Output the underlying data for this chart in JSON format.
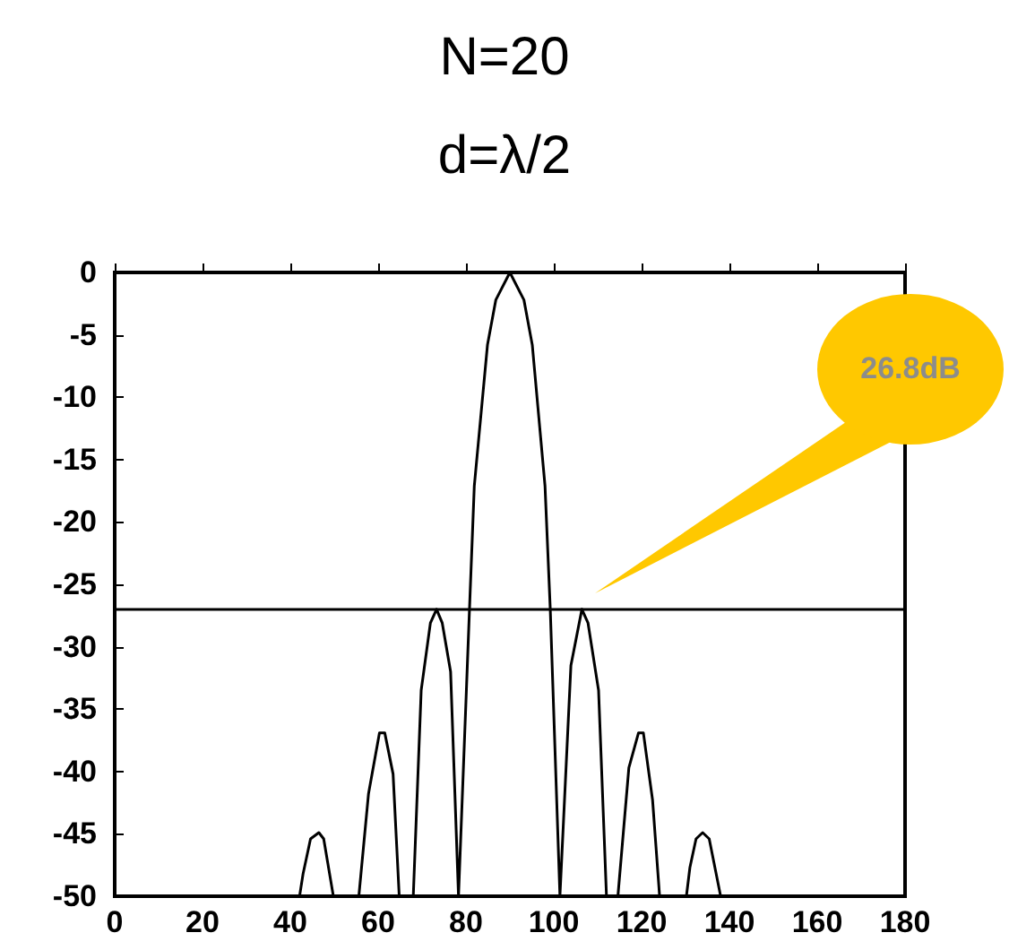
{
  "chart_data": {
    "type": "line",
    "title": "N=20",
    "subtitle": "d=λ/2",
    "x": [
      42.1,
      42.9,
      44.6,
      46.5,
      47.6,
      49.8,
      52.7,
      55.6,
      57.8,
      60.3,
      61.5,
      63.4,
      64.8,
      68.0,
      69.8,
      71.9,
      73.3,
      74.6,
      76.5,
      78.3,
      80.8,
      81.9,
      84.9,
      86.8,
      90,
      93.2,
      95.1,
      98,
      99.2,
      101.4,
      103.9,
      106.4,
      107.8,
      110.2,
      112,
      114.6,
      117.1,
      119.3,
      120.4,
      122.5,
      124.1,
      127.2,
      130.2,
      131,
      132.4,
      133.9,
      135.4,
      138
    ],
    "series": [
      {
        "color": "#000000",
        "values": [
          -50,
          -48.2,
          -45.4,
          -44.9,
          -45.4,
          -50,
          null,
          -50,
          -41.8,
          -36.9,
          -36.9,
          -40.2,
          -50,
          -50,
          -33.5,
          -28.1,
          -27,
          -28.1,
          -32,
          -50,
          -27,
          -17.1,
          -5.8,
          -2.2,
          0,
          -2.2,
          -5.8,
          -17.1,
          -27,
          -50,
          -31.5,
          -27,
          -28.1,
          -33.5,
          -50,
          -50,
          -39.7,
          -36.9,
          -36.9,
          -42.3,
          -50,
          null,
          -50,
          -47.7,
          -45.4,
          -44.9,
          -45.4,
          -50
        ]
      }
    ],
    "xlim": [
      0,
      180
    ],
    "xticks": [
      0,
      20,
      40,
      60,
      80,
      100,
      120,
      140,
      160,
      180
    ],
    "ylim": [
      -50,
      0
    ],
    "yticks": [
      -50,
      -45,
      -40,
      -35,
      -30,
      -25,
      -20,
      -15,
      -10,
      -5,
      0
    ],
    "ref_lines": [
      {
        "axis": "y",
        "value": -27,
        "color": "#000000"
      }
    ],
    "annotations": [
      "26.8dB"
    ],
    "grid": false,
    "marker": "none",
    "line_style": "solid"
  }
}
